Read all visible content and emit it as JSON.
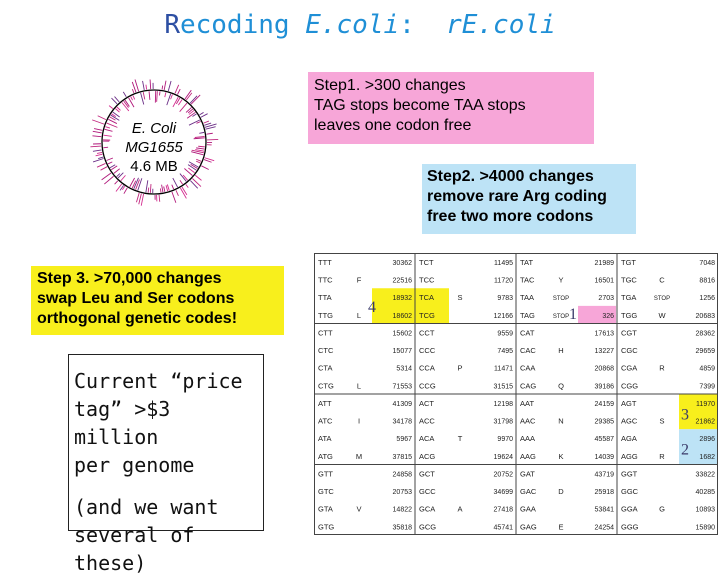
{
  "title": {
    "initial": "R",
    "word": "ecoding ",
    "ecoli": "E.coli",
    "colon": ":",
    "recoded": "rE.coli"
  },
  "genome": {
    "name": "E. Coli",
    "strain": "MG1655",
    "size": "4.6 MB"
  },
  "step1": {
    "lines": [
      "Step1. >300 changes",
      "TAG stops  become  TAA stops",
      "leaves one codon free"
    ],
    "color": "#f7a6d8"
  },
  "step2": {
    "lines": [
      "Step2.  >4000 changes",
      "remove rare Arg coding",
      "free two more codons"
    ],
    "color": "#bde3f6"
  },
  "step3": {
    "lines": [
      "Step 3.  >70,000 changes",
      "swap Leu and Ser codons",
      "orthogonal genetic codes!"
    ],
    "color": "#f8ef1c"
  },
  "price": {
    "lines": [
      "Current “price",
      "tag” >$3 million",
      "per genome"
    ],
    "sub_lines": [
      "(and we want",
      "several of these)"
    ]
  },
  "codon_table": {
    "highlight_colors": {
      "yellow": "#f8ef1c",
      "pink": "#f7a6d8",
      "blue": "#bde3f6"
    },
    "markers": {
      "leu_ser": "4",
      "tag": "1",
      "agr_ser": "3",
      "agr_arg": "2"
    },
    "columns": [
      {
        "rows": [
          {
            "codon": "TTT",
            "count": "30362"
          },
          {
            "codon": "TTC",
            "count": "22516"
          },
          {
            "codon": "TTA",
            "count": "18932"
          },
          {
            "codon": "TTG",
            "count": "18602"
          },
          {
            "codon": "CTT",
            "count": "15602"
          },
          {
            "codon": "CTC",
            "count": "15077"
          },
          {
            "codon": "CTA",
            "count": "5314"
          },
          {
            "codon": "CTG",
            "count": "71553"
          },
          {
            "codon": "ATT",
            "count": "41309"
          },
          {
            "codon": "ATC",
            "count": "34178"
          },
          {
            "codon": "ATA",
            "count": "5967"
          },
          {
            "codon": "ATG",
            "count": "37815"
          },
          {
            "codon": "GTT",
            "count": "24858"
          },
          {
            "codon": "GTC",
            "count": "20753"
          },
          {
            "codon": "GTA",
            "count": "14822"
          },
          {
            "codon": "GTG",
            "count": "35818"
          }
        ],
        "aa": [
          {
            "aa": "F",
            "row": 1
          },
          {
            "aa": "L",
            "row": 3
          },
          {
            "aa": "L",
            "row": 7
          },
          {
            "aa": "I",
            "row": 9
          },
          {
            "aa": "M",
            "row": 11
          },
          {
            "aa": "V",
            "row": 14
          }
        ]
      },
      {
        "rows": [
          {
            "codon": "TCT",
            "count": "11495"
          },
          {
            "codon": "TCC",
            "count": "11720"
          },
          {
            "codon": "TCA",
            "count": "9783"
          },
          {
            "codon": "TCG",
            "count": "12166"
          },
          {
            "codon": "CCT",
            "count": "9559"
          },
          {
            "codon": "CCC",
            "count": "7495"
          },
          {
            "codon": "CCA",
            "count": "11471"
          },
          {
            "codon": "CCG",
            "count": "31515"
          },
          {
            "codon": "ACT",
            "count": "12198"
          },
          {
            "codon": "ACC",
            "count": "31798"
          },
          {
            "codon": "ACA",
            "count": "9970"
          },
          {
            "codon": "ACG",
            "count": "19624"
          },
          {
            "codon": "GCT",
            "count": "20752"
          },
          {
            "codon": "GCC",
            "count": "34699"
          },
          {
            "codon": "GCA",
            "count": "27418"
          },
          {
            "codon": "GCG",
            "count": "45741"
          }
        ],
        "aa": [
          {
            "aa": "S",
            "row": 2
          },
          {
            "aa": "P",
            "row": 6
          },
          {
            "aa": "T",
            "row": 10
          },
          {
            "aa": "A",
            "row": 14
          }
        ]
      },
      {
        "rows": [
          {
            "codon": "TAT",
            "count": "21989"
          },
          {
            "codon": "TAC",
            "count": "16501"
          },
          {
            "codon": "TAA",
            "count": "2703"
          },
          {
            "codon": "TAG",
            "count": "326"
          },
          {
            "codon": "CAT",
            "count": "17613"
          },
          {
            "codon": "CAC",
            "count": "13227"
          },
          {
            "codon": "CAA",
            "count": "20868"
          },
          {
            "codon": "CAG",
            "count": "39186"
          },
          {
            "codon": "AAT",
            "count": "24159"
          },
          {
            "codon": "AAC",
            "count": "29385"
          },
          {
            "codon": "AAA",
            "count": "45587"
          },
          {
            "codon": "AAG",
            "count": "14039"
          },
          {
            "codon": "GAT",
            "count": "43719"
          },
          {
            "codon": "GAC",
            "count": "25918"
          },
          {
            "codon": "GAA",
            "count": "53841"
          },
          {
            "codon": "GAG",
            "count": "24254"
          }
        ],
        "aa": [
          {
            "aa": "Y",
            "row": 1
          },
          {
            "aa": "STOP",
            "row": 2
          },
          {
            "aa": "STOP",
            "row": 3
          },
          {
            "aa": "H",
            "row": 5
          },
          {
            "aa": "Q",
            "row": 7
          },
          {
            "aa": "N",
            "row": 9
          },
          {
            "aa": "K",
            "row": 11
          },
          {
            "aa": "D",
            "row": 13
          },
          {
            "aa": "E",
            "row": 15
          }
        ]
      },
      {
        "rows": [
          {
            "codon": "TGT",
            "count": "7048"
          },
          {
            "codon": "TGC",
            "count": "8816"
          },
          {
            "codon": "TGA",
            "count": "1256"
          },
          {
            "codon": "TGG",
            "count": "20683"
          },
          {
            "codon": "CGT",
            "count": "28362"
          },
          {
            "codon": "CGC",
            "count": "29659"
          },
          {
            "codon": "CGA",
            "count": "4859"
          },
          {
            "codon": "CGG",
            "count": "7399"
          },
          {
            "codon": "AGT",
            "count": "11970"
          },
          {
            "codon": "AGC",
            "count": "21862"
          },
          {
            "codon": "AGA",
            "count": "2896"
          },
          {
            "codon": "AGG",
            "count": "1682"
          },
          {
            "codon": "GGT",
            "count": "33822"
          },
          {
            "codon": "GGC",
            "count": "40285"
          },
          {
            "codon": "GGA",
            "count": "10893"
          },
          {
            "codon": "GGG",
            "count": "15890"
          }
        ],
        "aa": [
          {
            "aa": "C",
            "row": 1
          },
          {
            "aa": "STOP",
            "row": 2
          },
          {
            "aa": "W",
            "row": 3
          },
          {
            "aa": "R",
            "row": 6
          },
          {
            "aa": "S",
            "row": 9
          },
          {
            "aa": "R",
            "row": 11
          },
          {
            "aa": "G",
            "row": 14
          }
        ]
      }
    ]
  }
}
